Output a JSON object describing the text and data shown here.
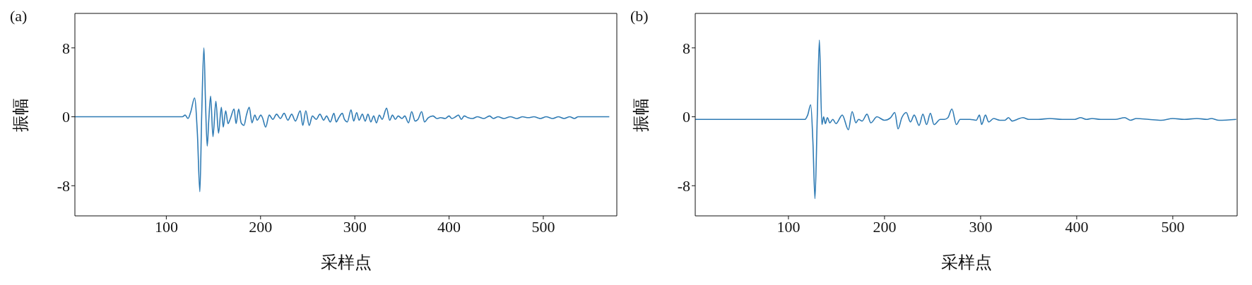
{
  "chart_data": [
    {
      "type": "line",
      "title": "(a)",
      "xlabel": "采样点",
      "ylabel": "振幅",
      "color": "#2f7bb4",
      "marker": "none",
      "xlim": [
        3,
        578
      ],
      "xticks": [
        100,
        200,
        300,
        400,
        500
      ],
      "ylim": [
        -11.5,
        12
      ],
      "yticks": [
        -8,
        0,
        8
      ],
      "x": [
        3,
        60,
        117,
        120,
        123,
        126,
        130,
        133,
        135.6,
        137.5,
        139.9,
        141.5,
        143.4,
        145,
        147,
        149.5,
        152.6,
        155.4,
        158.4,
        160.4,
        163,
        165.5,
        168,
        171.9,
        174,
        176.8,
        179.4,
        182.4,
        185,
        188,
        190.9,
        193.9,
        196.5,
        200.3,
        202,
        205.4,
        209.2,
        213,
        217,
        221,
        225,
        229,
        233,
        237,
        242.1,
        244.8,
        248,
        251.6,
        255,
        259,
        263,
        267,
        270,
        274,
        277.8,
        280.3,
        283,
        286.7,
        289,
        292,
        296,
        298.8,
        302,
        304.5,
        308,
        311,
        314,
        317,
        320,
        323,
        326,
        329,
        333.7,
        337,
        340,
        343,
        346,
        350,
        353,
        357,
        360.3,
        364,
        367,
        370.9,
        374,
        378,
        383,
        387,
        391,
        396,
        400,
        403,
        407,
        410,
        413,
        416,
        420,
        425,
        430,
        437,
        443,
        447,
        452,
        458,
        465,
        472,
        478,
        484,
        490,
        497,
        503,
        510,
        516,
        522,
        528,
        533,
        537,
        545,
        560,
        570
      ],
      "values": [
        0,
        0,
        0,
        0.2,
        -0.2,
        0.6,
        2.2,
        -2,
        -8.7,
        0,
        8,
        2,
        -3.4,
        -0.5,
        2.4,
        -2.3,
        1.8,
        -1.9,
        1.1,
        -1.2,
        0.7,
        -0.8,
        -0.2,
        0.9,
        -0.8,
        0.9,
        -0.7,
        -1,
        0.2,
        1.1,
        -0.7,
        0.2,
        -0.4,
        0.2,
        -0.1,
        -1.2,
        0.2,
        -0.3,
        0.3,
        -0.2,
        0.4,
        -0.4,
        0.3,
        -0.5,
        0.7,
        -1,
        0.7,
        -1,
        0.1,
        -0.3,
        0.3,
        -0.4,
        0.1,
        -0.6,
        0.4,
        -0.6,
        -0.1,
        0.4,
        -0.3,
        -0.6,
        0.8,
        -0.5,
        0.5,
        -0.4,
        0.3,
        -0.5,
        0.3,
        -0.6,
        0.1,
        -0.7,
        0.2,
        -0.3,
        1,
        -0.4,
        0.2,
        -0.3,
        0.1,
        -0.2,
        0.1,
        -0.7,
        0.6,
        -0.5,
        -0.3,
        0.6,
        -0.6,
        -0.1,
        0.1,
        -0.2,
        -0.1,
        -0.2,
        0.1,
        -0.2,
        0,
        0.2,
        -0.3,
        0.1,
        -0.1,
        -0.2,
        0,
        -0.2,
        0.1,
        -0.2,
        0,
        -0.2,
        0,
        -0.2,
        0,
        -0.1,
        0,
        -0.2,
        0,
        -0.2,
        0,
        -0.2,
        0,
        -0.2,
        0,
        0,
        0,
        0
      ]
    },
    {
      "type": "line",
      "title": "(b)",
      "xlabel": "采样点",
      "ylabel": "振幅",
      "color": "#2f7bb4",
      "marker": "none",
      "xlim": [
        3,
        567
      ],
      "xticks": [
        100,
        200,
        300,
        400,
        500
      ],
      "ylim": [
        -11.5,
        12
      ],
      "yticks": [
        -8,
        0,
        8
      ],
      "x": [
        3,
        60,
        117.2,
        120,
        123.2,
        125.5,
        127.6,
        130,
        132.2,
        134.8,
        136.6,
        138.4,
        140.5,
        143.1,
        146.2,
        149.5,
        156,
        162.4,
        166.3,
        170.2,
        173,
        176.6,
        181.8,
        185.7,
        192.1,
        199.9,
        206.3,
        210.7,
        214.1,
        218,
        222.6,
        227,
        230.9,
        236,
        239.9,
        243.8,
        247.7,
        251.5,
        258,
        262.4,
        266,
        270.1,
        274.8,
        278.7,
        282.5,
        289,
        295.5,
        298.8,
        301.1,
        305,
        308.4,
        313.5,
        320,
        325.2,
        329,
        332.9,
        338,
        344,
        350,
        360,
        372,
        385,
        398,
        404,
        410,
        416,
        425,
        440,
        450,
        456,
        462,
        475,
        488,
        500,
        512,
        525,
        536,
        540,
        548,
        566
      ],
      "values": [
        -0.3,
        -0.3,
        -0.3,
        0.2,
        1.4,
        -3,
        -9.5,
        0,
        8.9,
        -0.9,
        0,
        -0.8,
        -0.1,
        -0.7,
        -0.3,
        -0.8,
        0.2,
        -1.5,
        0.6,
        -0.7,
        -0.3,
        -0.5,
        0.3,
        -0.7,
        0,
        -0.4,
        -0.1,
        0.5,
        -1.4,
        -0.1,
        0.5,
        -0.6,
        0.2,
        -1,
        0.3,
        -0.9,
        0.4,
        -0.9,
        -0.3,
        -0.3,
        -0.1,
        0.9,
        -0.9,
        -0.3,
        -0.3,
        -0.3,
        -0.4,
        0.2,
        -0.9,
        0.2,
        -0.6,
        -0.2,
        -0.4,
        -0.4,
        -0.1,
        -0.5,
        -0.3,
        -0.1,
        -0.3,
        -0.3,
        -0.2,
        -0.3,
        -0.3,
        -0.1,
        -0.3,
        -0.2,
        -0.3,
        -0.3,
        -0.1,
        -0.4,
        -0.2,
        -0.3,
        -0.4,
        -0.2,
        -0.3,
        -0.2,
        -0.3,
        -0.2,
        -0.4,
        -0.3
      ]
    }
  ]
}
